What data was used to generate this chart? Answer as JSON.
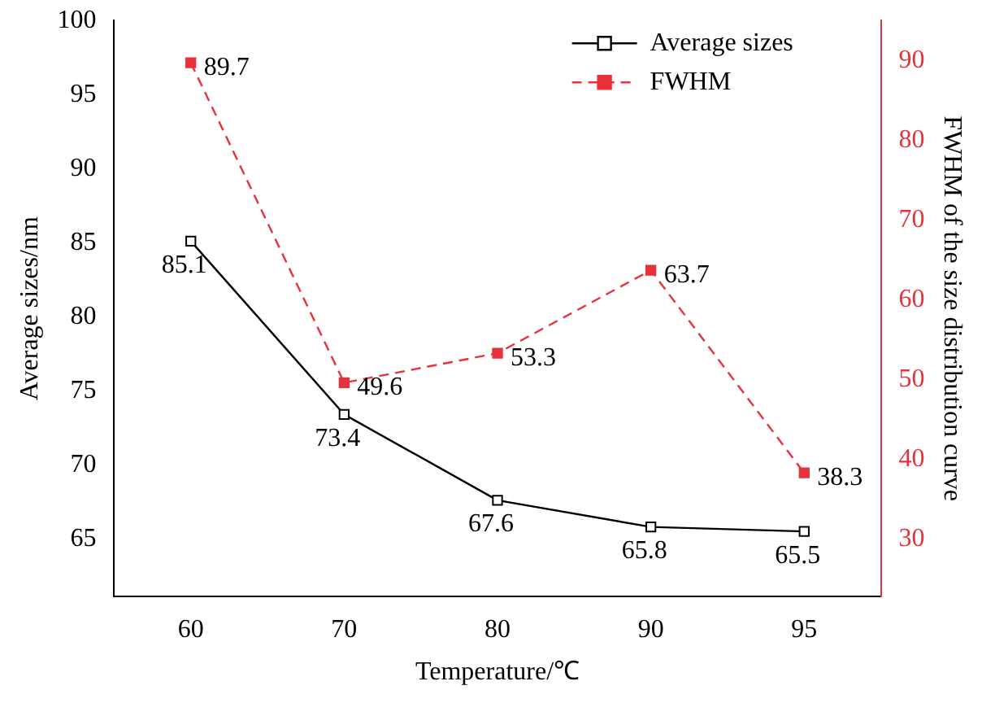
{
  "chart_data": {
    "type": "line",
    "xlabel": "Temperature/℃",
    "ylabel": "Average sizes/nm",
    "y2label": "FWHM of the size distribution curve",
    "categories": [
      "60",
      "70",
      "80",
      "90",
      "95"
    ],
    "series": [
      {
        "name": "Average sizes",
        "color": "#000000",
        "values": [
          85.1,
          73.4,
          67.6,
          65.8,
          65.5
        ],
        "line_style": "solid"
      },
      {
        "name": "FWHM",
        "color": "#e8313a",
        "values": [
          89.7,
          49.6,
          53.3,
          63.7,
          38.3
        ],
        "axis": "y2",
        "line_style": "dashed"
      }
    ],
    "ylim": [
      61.1,
      100
    ],
    "yticks": [
      65,
      70,
      75,
      80,
      85,
      90,
      95,
      100
    ],
    "y2lim": [
      22.8,
      95
    ],
    "y2ticks": [
      30,
      40,
      50,
      60,
      70,
      80,
      90
    ],
    "marker": "square",
    "data_labels": true,
    "legend": "top right",
    "grid": false
  }
}
